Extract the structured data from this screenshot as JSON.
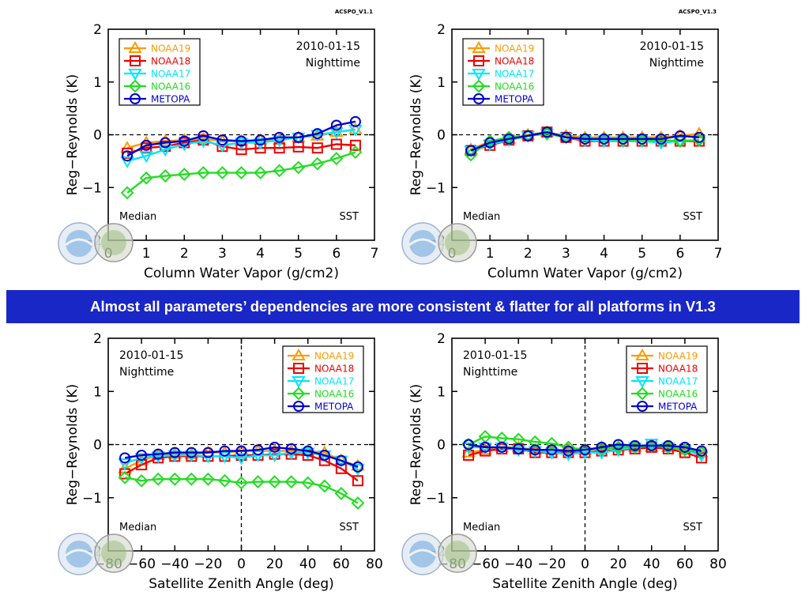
{
  "banner": "Almost all parameters’ dependencies are more consistent & flatter for all platforms in V1.3",
  "chart_data": [
    {
      "type": "line",
      "version_label": "ACSPO_V1.1",
      "date": "2010-01-15",
      "period": "Nighttime",
      "stat": "Median",
      "variable": "SST",
      "xlabel": "Column Water Vapor (g/cm2)",
      "ylabel": "Reg−Reynolds (K)",
      "xlim": [
        0,
        7
      ],
      "ylim": [
        -2,
        2
      ],
      "xticks": [
        0,
        1,
        2,
        3,
        4,
        5,
        6,
        7
      ],
      "yticks": [
        -2,
        -1,
        0,
        1,
        2
      ],
      "legend_position": "top-left",
      "x": [
        0.5,
        1.0,
        1.5,
        2.0,
        2.5,
        3.0,
        3.5,
        4.0,
        4.5,
        5.0,
        5.5,
        6.0,
        6.5
      ],
      "series": [
        {
          "name": "NOAA19",
          "color": "#ff9a00",
          "marker": "triangle-up",
          "values": [
            -0.25,
            -0.15,
            -0.12,
            -0.1,
            -0.08,
            -0.12,
            -0.12,
            -0.1,
            -0.1,
            -0.05,
            -0.02,
            0.05,
            0.1
          ]
        },
        {
          "name": "NOAA18",
          "color": "#ee0000",
          "marker": "square",
          "values": [
            -0.35,
            -0.25,
            -0.22,
            -0.15,
            -0.1,
            -0.22,
            -0.28,
            -0.25,
            -0.25,
            -0.23,
            -0.25,
            -0.18,
            -0.2
          ]
        },
        {
          "name": "NOAA17",
          "color": "#00e5ff",
          "marker": "triangle-down",
          "values": [
            -0.5,
            -0.4,
            -0.28,
            -0.18,
            -0.12,
            -0.2,
            -0.15,
            -0.15,
            -0.1,
            -0.05,
            0.0,
            0.05,
            0.1
          ]
        },
        {
          "name": "NOAA16",
          "color": "#22dd22",
          "marker": "diamond",
          "values": [
            -1.1,
            -0.82,
            -0.78,
            -0.75,
            -0.72,
            -0.72,
            -0.72,
            -0.72,
            -0.68,
            -0.62,
            -0.55,
            -0.45,
            -0.33
          ]
        },
        {
          "name": "METOPA",
          "color": "#0000cc",
          "marker": "circle",
          "values": [
            -0.4,
            -0.2,
            -0.15,
            -0.12,
            -0.02,
            -0.1,
            -0.12,
            -0.1,
            -0.05,
            -0.05,
            0.02,
            0.18,
            0.25
          ]
        }
      ]
    },
    {
      "type": "line",
      "version_label": "ACSPO_V1.3",
      "date": "2010-01-15",
      "period": "Nighttime",
      "stat": "Median",
      "variable": "SST",
      "xlabel": "Column Water Vapor (g/cm2)",
      "ylabel": "Reg−Reynolds (K)",
      "xlim": [
        0,
        7
      ],
      "ylim": [
        -2,
        2
      ],
      "xticks": [
        0,
        1,
        2,
        3,
        4,
        5,
        6,
        7
      ],
      "yticks": [
        -2,
        -1,
        0,
        1,
        2
      ],
      "legend_position": "top-left",
      "x": [
        0.5,
        1.0,
        1.5,
        2.0,
        2.5,
        3.0,
        3.5,
        4.0,
        4.5,
        5.0,
        5.5,
        6.0,
        6.5
      ],
      "series": [
        {
          "name": "NOAA19",
          "color": "#ff9a00",
          "marker": "triangle-up",
          "values": [
            -0.28,
            -0.12,
            -0.08,
            0.0,
            0.05,
            -0.02,
            -0.05,
            -0.05,
            -0.05,
            -0.05,
            -0.05,
            -0.02,
            0.02
          ]
        },
        {
          "name": "NOAA18",
          "color": "#ee0000",
          "marker": "square",
          "values": [
            -0.3,
            -0.2,
            -0.1,
            -0.02,
            0.05,
            -0.05,
            -0.12,
            -0.12,
            -0.12,
            -0.12,
            -0.12,
            -0.12,
            -0.12
          ]
        },
        {
          "name": "NOAA17",
          "color": "#00e5ff",
          "marker": "triangle-down",
          "values": [
            -0.3,
            -0.18,
            -0.1,
            -0.02,
            0.02,
            -0.05,
            -0.1,
            -0.12,
            -0.12,
            -0.12,
            -0.15,
            -0.12,
            -0.1
          ]
        },
        {
          "name": "NOAA16",
          "color": "#22dd22",
          "marker": "diamond",
          "values": [
            -0.38,
            -0.12,
            -0.05,
            -0.02,
            0.02,
            -0.05,
            -0.08,
            -0.08,
            -0.1,
            -0.1,
            -0.1,
            -0.12,
            -0.1
          ]
        },
        {
          "name": "METOPA",
          "color": "#0000cc",
          "marker": "circle",
          "values": [
            -0.3,
            -0.15,
            -0.08,
            -0.02,
            0.05,
            -0.05,
            -0.08,
            -0.08,
            -0.08,
            -0.08,
            -0.08,
            -0.02,
            -0.05
          ]
        }
      ]
    },
    {
      "type": "line",
      "version_label": "",
      "date": "2010-01-15",
      "period": "Nighttime",
      "stat": "Median",
      "variable": "SST",
      "xlabel": "Satellite Zenith Angle (deg)",
      "ylabel": "Reg−Reynolds (K)",
      "xlim": [
        -80,
        80
      ],
      "ylim": [
        -2,
        2
      ],
      "xticks": [
        -80,
        -60,
        -40,
        -20,
        0,
        20,
        40,
        60,
        80
      ],
      "yticks": [
        -2,
        -1,
        0,
        1,
        2
      ],
      "vline": 0,
      "legend_position": "top-right",
      "x": [
        -70,
        -60,
        -50,
        -40,
        -30,
        -20,
        -10,
        0,
        10,
        20,
        30,
        40,
        50,
        60,
        70
      ],
      "series": [
        {
          "name": "NOAA19",
          "color": "#ff9a00",
          "marker": "triangle-up",
          "values": [
            -0.45,
            -0.3,
            -0.2,
            -0.18,
            -0.18,
            -0.15,
            -0.15,
            -0.12,
            -0.12,
            -0.12,
            -0.12,
            -0.12,
            -0.15,
            -0.3,
            -0.4
          ]
        },
        {
          "name": "NOAA18",
          "color": "#ee0000",
          "marker": "square",
          "values": [
            -0.55,
            -0.38,
            -0.25,
            -0.22,
            -0.22,
            -0.22,
            -0.22,
            -0.2,
            -0.2,
            -0.18,
            -0.18,
            -0.2,
            -0.3,
            -0.45,
            -0.68
          ]
        },
        {
          "name": "NOAA17",
          "color": "#00e5ff",
          "marker": "triangle-down",
          "values": [
            -0.35,
            -0.25,
            -0.22,
            -0.2,
            -0.2,
            -0.22,
            -0.22,
            -0.25,
            -0.2,
            -0.2,
            -0.15,
            -0.15,
            -0.2,
            -0.3,
            -0.45
          ]
        },
        {
          "name": "NOAA16",
          "color": "#22dd22",
          "marker": "diamond",
          "values": [
            -0.62,
            -0.68,
            -0.65,
            -0.65,
            -0.65,
            -0.65,
            -0.68,
            -0.72,
            -0.7,
            -0.7,
            -0.7,
            -0.72,
            -0.78,
            -0.92,
            -1.1
          ]
        },
        {
          "name": "METOPA",
          "color": "#0000cc",
          "marker": "circle",
          "values": [
            -0.25,
            -0.2,
            -0.18,
            -0.15,
            -0.15,
            -0.15,
            -0.12,
            -0.12,
            -0.1,
            -0.05,
            -0.08,
            -0.12,
            -0.2,
            -0.3,
            -0.42
          ]
        }
      ]
    },
    {
      "type": "line",
      "version_label": "",
      "date": "2010-01-15",
      "period": "Nighttime",
      "stat": "Median",
      "variable": "SST",
      "xlabel": "Satellite Zenith Angle (deg)",
      "ylabel": "Reg−Reynolds (K)",
      "xlim": [
        -80,
        80
      ],
      "ylim": [
        -2,
        2
      ],
      "xticks": [
        -80,
        -60,
        -40,
        -20,
        0,
        20,
        40,
        60,
        80
      ],
      "yticks": [
        -2,
        -1,
        0,
        1,
        2
      ],
      "vline": 0,
      "legend_position": "top-right",
      "x": [
        -70,
        -60,
        -50,
        -40,
        -30,
        -20,
        -10,
        0,
        10,
        20,
        30,
        40,
        50,
        60,
        70
      ],
      "series": [
        {
          "name": "NOAA19",
          "color": "#ff9a00",
          "marker": "triangle-up",
          "values": [
            -0.15,
            -0.1,
            -0.05,
            -0.05,
            -0.1,
            -0.1,
            -0.1,
            -0.1,
            -0.05,
            -0.05,
            -0.05,
            -0.05,
            -0.05,
            -0.1,
            -0.15
          ]
        },
        {
          "name": "NOAA18",
          "color": "#ee0000",
          "marker": "square",
          "values": [
            -0.2,
            -0.12,
            -0.08,
            -0.08,
            -0.15,
            -0.15,
            -0.15,
            -0.15,
            -0.12,
            -0.1,
            -0.08,
            -0.05,
            -0.08,
            -0.15,
            -0.25
          ]
        },
        {
          "name": "NOAA17",
          "color": "#00e5ff",
          "marker": "triangle-down",
          "values": [
            -0.05,
            -0.05,
            -0.05,
            -0.1,
            -0.12,
            -0.15,
            -0.18,
            -0.15,
            -0.15,
            -0.1,
            -0.05,
            0.02,
            -0.05,
            -0.1,
            -0.2
          ]
        },
        {
          "name": "NOAA16",
          "color": "#22dd22",
          "marker": "diamond",
          "values": [
            0.0,
            0.15,
            0.12,
            0.1,
            0.05,
            0.02,
            -0.05,
            -0.1,
            -0.08,
            -0.05,
            -0.05,
            -0.02,
            -0.05,
            -0.1,
            -0.15
          ]
        },
        {
          "name": "METOPA",
          "color": "#0000cc",
          "marker": "circle",
          "values": [
            0.0,
            -0.05,
            -0.05,
            -0.08,
            -0.1,
            -0.1,
            -0.12,
            -0.1,
            -0.05,
            0.0,
            -0.02,
            -0.02,
            -0.02,
            -0.05,
            -0.12
          ]
        }
      ]
    }
  ]
}
